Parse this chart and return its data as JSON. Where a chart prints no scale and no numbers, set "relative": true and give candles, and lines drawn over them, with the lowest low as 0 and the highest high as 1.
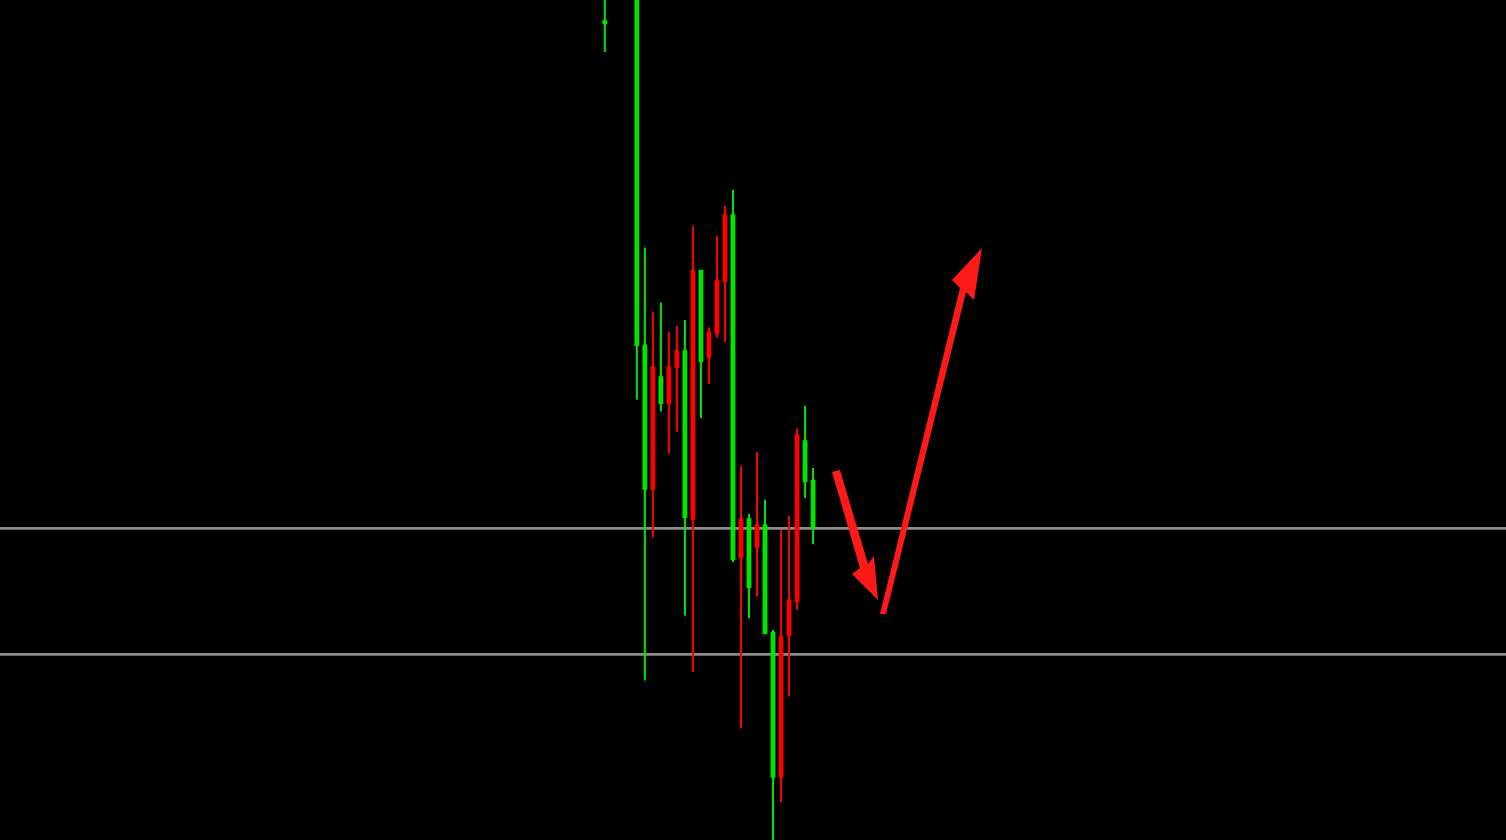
{
  "chart_data": {
    "type": "candlestick",
    "relative": true,
    "grid": false,
    "categories": [
      null,
      null,
      null,
      null,
      null,
      null,
      null,
      null,
      null,
      null,
      null,
      null,
      null,
      null,
      null,
      null,
      null,
      null,
      null,
      null,
      null,
      null,
      null,
      null,
      null,
      null,
      null,
      null,
      null,
      null,
      null,
      null,
      null,
      null,
      null,
      null,
      null,
      null,
      null,
      null,
      null,
      null,
      null,
      null,
      null,
      null,
      null,
      null,
      null,
      null,
      null,
      null,
      null,
      null,
      null,
      null,
      null,
      null,
      null,
      null,
      null,
      null,
      null,
      null,
      null,
      null,
      null,
      null,
      null,
      null,
      null,
      null,
      null,
      null,
      null,
      null,
      null,
      null,
      null,
      null,
      null,
      null,
      null,
      null,
      null,
      null,
      null,
      null,
      null,
      null,
      null,
      null,
      null,
      null,
      null,
      null,
      null,
      null,
      null,
      null,
      null,
      null,
      null,
      null,
      null,
      null,
      null,
      null,
      null,
      null,
      null,
      null,
      null,
      null,
      null,
      null,
      null,
      null,
      null,
      null,
      null,
      null,
      null,
      null,
      null,
      null,
      null,
      null,
      null,
      null,
      null,
      null,
      null,
      null,
      null,
      null,
      null,
      null,
      null,
      null,
      null,
      null,
      null,
      null,
      null,
      null,
      null,
      null,
      null,
      null,
      null,
      null,
      null,
      null,
      null,
      null,
      null,
      null,
      null,
      null,
      null,
      null,
      null,
      null,
      null,
      null,
      null,
      null,
      null,
      null,
      null,
      null,
      null,
      null,
      null,
      null,
      null,
      null,
      null,
      null,
      null,
      null,
      null,
      null,
      null,
      null,
      null,
      null
    ],
    "ohlc": [
      null,
      null,
      null,
      null,
      null,
      null,
      null,
      null,
      null,
      null,
      null,
      null,
      null,
      null,
      null,
      null,
      null,
      null,
      null,
      null,
      null,
      null,
      null,
      null,
      null,
      null,
      null,
      null,
      null,
      null,
      null,
      null,
      null,
      null,
      null,
      null,
      null,
      null,
      null,
      null,
      null,
      null,
      null,
      null,
      null,
      null,
      null,
      null,
      null,
      null,
      null,
      null,
      null,
      null,
      null,
      null,
      null,
      null,
      null,
      null,
      null,
      null,
      null,
      null,
      null,
      null,
      null,
      null,
      null,
      null,
      null,
      null,
      null,
      null,
      null,
      [
        0.976,
        1,
        0.938,
        0.971
      ],
      null,
      null,
      null,
      [
        1,
        1,
        0.524,
        0.588
      ],
      [
        0.59,
        0.705,
        0.19,
        0.417
      ],
      [
        0.417,
        0.629,
        0.36,
        0.564
      ],
      [
        0.552,
        0.64,
        0.51,
        0.519
      ],
      [
        0.519,
        0.605,
        0.46,
        0.564
      ],
      [
        0.562,
        0.612,
        0.486,
        0.583
      ],
      [
        0.583,
        0.619,
        0.267,
        0.383
      ],
      [
        0.381,
        0.731,
        0.2,
        0.679
      ],
      [
        0.679,
        0.679,
        0.502,
        0.569
      ],
      [
        0.574,
        0.61,
        0.543,
        0.605
      ],
      [
        0.602,
        0.719,
        0.598,
        0.667
      ],
      [
        0.664,
        0.755,
        0.593,
        0.745
      ],
      [
        0.745,
        0.774,
        0.331,
        0.333
      ],
      [
        0.336,
        0.445,
        0.133,
        0.383
      ],
      [
        0.383,
        0.388,
        0.264,
        0.3
      ],
      [
        0.348,
        0.462,
        0.29,
        0.376
      ],
      [
        0.376,
        0.405,
        0.245,
        0.245
      ],
      [
        0.248,
        0.25,
        0,
        0.074
      ],
      [
        0.074,
        0.369,
        0.045,
        0.243
      ],
      [
        0.243,
        0.386,
        0.171,
        0.286
      ],
      [
        0.283,
        0.49,
        0.274,
        0.483
      ],
      [
        0.476,
        0.517,
        0.407,
        0.426
      ],
      [
        0.429,
        0.443,
        0.352,
        0.371
      ],
      null,
      null,
      null,
      null,
      null,
      null,
      null,
      null,
      null,
      null,
      null,
      null,
      null,
      null,
      null,
      null,
      null,
      null,
      null,
      null,
      null,
      null,
      null,
      null,
      null,
      null,
      null,
      null,
      null,
      null,
      null,
      null,
      null,
      null,
      null,
      null,
      null,
      null,
      null,
      null,
      null,
      null,
      null,
      null,
      null,
      null,
      null,
      null,
      null,
      null,
      null,
      null,
      null,
      null,
      null,
      null,
      null,
      null,
      null,
      null,
      null,
      null,
      null,
      null,
      null,
      null,
      null,
      null,
      null,
      null,
      null,
      null,
      null,
      null,
      null,
      null,
      null,
      null,
      null,
      null,
      null,
      null,
      null,
      null,
      null,
      null
    ],
    "colors": [
      null,
      null,
      null,
      null,
      null,
      null,
      null,
      null,
      null,
      null,
      null,
      null,
      null,
      null,
      null,
      null,
      null,
      null,
      null,
      null,
      null,
      null,
      null,
      null,
      null,
      null,
      null,
      null,
      null,
      null,
      null,
      null,
      null,
      null,
      null,
      null,
      null,
      null,
      null,
      null,
      null,
      null,
      null,
      null,
      null,
      null,
      null,
      null,
      null,
      null,
      null,
      null,
      null,
      null,
      null,
      null,
      null,
      null,
      null,
      null,
      null,
      null,
      null,
      null,
      null,
      null,
      null,
      null,
      null,
      null,
      null,
      null,
      null,
      null,
      null,
      "#00e600",
      null,
      null,
      null,
      "#00e600",
      "#00e600",
      "#ff0000",
      "#00e600",
      "#ff0000",
      "#ff0000",
      "#00e600",
      "#ff0000",
      "#00e600",
      "#ff0000",
      "#ff0000",
      "#ff0000",
      "#00e600",
      "#ff0000",
      "#00e600",
      "#ff0000",
      "#00e600",
      "#00e600",
      "#ff0000",
      "#ff0000",
      "#ff0000",
      "#00e600",
      "#00e600",
      null,
      null,
      null,
      null,
      null,
      null,
      null,
      null,
      null,
      null,
      null,
      null,
      null,
      null,
      null,
      null,
      null,
      null,
      null,
      null,
      null,
      null,
      null,
      null,
      null,
      null,
      null,
      null,
      null,
      null,
      null,
      null,
      null,
      null,
      null,
      null,
      null,
      null,
      null,
      null,
      null,
      null,
      null,
      null,
      null,
      null,
      null,
      null,
      null,
      null,
      null,
      null,
      null,
      null,
      null,
      null,
      null,
      null,
      null,
      null,
      null,
      null,
      null,
      null,
      null,
      null,
      null,
      null,
      null,
      null,
      null,
      null,
      null,
      null,
      null,
      null,
      null,
      null,
      null,
      null,
      null,
      null,
      null,
      null,
      null,
      null
    ],
    "ref_lines": [
      {
        "axis": "y",
        "value": 0.371,
        "color": "#8c8c8c"
      },
      {
        "axis": "y",
        "value": 0.221,
        "color": "#8c8c8c"
      }
    ]
  }
}
